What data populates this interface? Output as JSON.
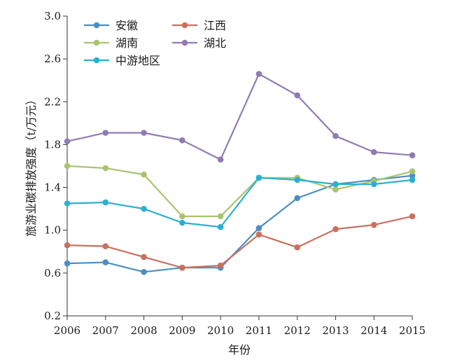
{
  "chart_data": {
    "type": "line",
    "xlabel": "年份",
    "ylabel": "旅游业碳排放强度（t/万元）",
    "x": [
      "2006",
      "2007",
      "2008",
      "2009",
      "2010",
      "2011",
      "2012",
      "2013",
      "2014",
      "2015"
    ],
    "ylim": [
      0.2,
      3.0
    ],
    "yticks": [
      "0.2",
      "0.6",
      "1.0",
      "1.4",
      "1.8",
      "2.2",
      "2.6",
      "3.0"
    ],
    "grid": false,
    "legend_position": "top-left",
    "series": [
      {
        "name": "安徽",
        "color": "#4a8ec2",
        "values": [
          0.69,
          0.7,
          0.61,
          0.65,
          0.65,
          1.02,
          1.3,
          1.43,
          1.47,
          1.51
        ]
      },
      {
        "name": "江西",
        "color": "#c9705f",
        "values": [
          0.86,
          0.85,
          0.75,
          0.65,
          0.67,
          0.96,
          0.84,
          1.01,
          1.05,
          1.13
        ]
      },
      {
        "name": "湖南",
        "color": "#a9c46f",
        "values": [
          1.6,
          1.58,
          1.52,
          1.13,
          1.13,
          1.49,
          1.49,
          1.38,
          1.46,
          1.55
        ]
      },
      {
        "name": "湖北",
        "color": "#8f7cb3",
        "values": [
          1.83,
          1.91,
          1.91,
          1.84,
          1.66,
          2.46,
          2.26,
          1.88,
          1.73,
          1.7
        ]
      },
      {
        "name": "中游地区",
        "color": "#2bb0d0",
        "values": [
          1.25,
          1.26,
          1.2,
          1.07,
          1.03,
          1.49,
          1.47,
          1.43,
          1.43,
          1.47
        ]
      }
    ]
  }
}
